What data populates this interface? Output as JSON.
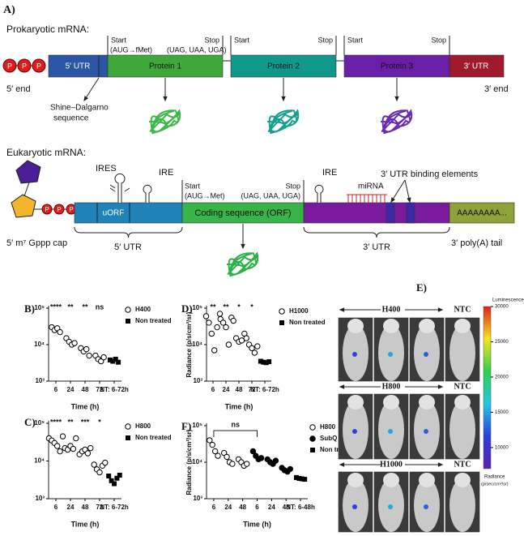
{
  "panel_a": {
    "label": "A)",
    "prokaryotic": {
      "title": "Prokaryotic mRNA:",
      "phosphates": [
        "P",
        "P",
        "P"
      ],
      "utr5": "5′ UTR",
      "proteins": [
        "Protein 1",
        "Protein 2",
        "Protein 3"
      ],
      "utr3": "3′ UTR",
      "end5": "5′ end",
      "end3": "3′ end",
      "codons": [
        "Start",
        "Stop",
        "Start",
        "Stop",
        "Start",
        "Stop"
      ],
      "start_detail": "(AUG→fMet)",
      "stop_detail": "(UAG, UAA, UGA)",
      "shine_dalgarno": [
        "Shine–Dalgarno",
        "sequence"
      ]
    },
    "eukaryotic": {
      "title": "Eukaryotic mRNA:",
      "phosphates": [
        "P",
        "P",
        "P"
      ],
      "ires": "IRES",
      "ire": [
        "IRE",
        "IRE"
      ],
      "start": "Start",
      "start_detail": "(AUG→Met)",
      "stop": "Stop",
      "stop_detail": "(UAG, UAA, UGA)",
      "mirna": "miRNA",
      "binding_elements": "3′ UTR binding elements",
      "uorf": "uORF",
      "orf": "Coding sequence (ORF)",
      "polya": "AAAAAAAA...",
      "cap": "5′ m⁷ Gppp cap",
      "utr5": "5′ UTR",
      "utr3": "3′ UTR",
      "tail": "3′ poly(A) tail"
    }
  },
  "chart_data": [
    {
      "type": "scatter",
      "label": "B)",
      "xlabel": "Time (h)",
      "categories": [
        "6",
        "24",
        "48",
        "72",
        "NT: 6-72h"
      ],
      "log_scale": true,
      "ylim": [
        1000,
        100000
      ],
      "yticks": [
        {
          "value": 1000,
          "label": "10³"
        },
        {
          "value": 10000,
          "label": "10⁴"
        },
        {
          "value": 100000,
          "label": "10⁵"
        }
      ],
      "annotations": [
        "****",
        "**",
        "**",
        "ns",
        null
      ],
      "series": [
        {
          "name": "H400",
          "marker": "circle-open",
          "color": "#000",
          "values": [
            [
              30000,
              25000,
              28000,
              22000
            ],
            [
              15000,
              12000,
              10000,
              11000
            ],
            [
              8000,
              6500,
              7500,
              5000
            ],
            [
              5000,
              4000,
              3500,
              4500
            ],
            null
          ]
        },
        {
          "name": "Non treated",
          "marker": "square",
          "color": "#000",
          "values": [
            null,
            null,
            null,
            null,
            [
              3800,
              3500,
              4000,
              3300
            ]
          ]
        }
      ]
    },
    {
      "type": "scatter",
      "label": "C)",
      "xlabel": "Time (h)",
      "categories": [
        "6",
        "24",
        "48",
        "72",
        "NT: 6-72h"
      ],
      "log_scale": true,
      "ylim": [
        1000,
        100000
      ],
      "yticks": [
        {
          "value": 1000,
          "label": "10³"
        },
        {
          "value": 10000,
          "label": "10⁴"
        },
        {
          "value": 100000,
          "label": "10⁵"
        }
      ],
      "annotations": [
        "****",
        "**",
        "***",
        "*",
        null
      ],
      "series": [
        {
          "name": "H800",
          "marker": "circle-open",
          "color": "#000",
          "values": [
            [
              40000,
              35000,
              30000,
              25000,
              18000,
              45000
            ],
            [
              22000,
              20000,
              25000,
              21000,
              40000
            ],
            [
              15000,
              18000,
              20000,
              16000,
              22000
            ],
            [
              8000,
              6000,
              5000,
              7500,
              9000
            ],
            null
          ]
        },
        {
          "name": "Non treated",
          "marker": "square",
          "color": "#000",
          "values": [
            null,
            null,
            null,
            null,
            [
              4000,
              3000,
              2500,
              3500,
              4200
            ]
          ]
        }
      ]
    },
    {
      "type": "scatter",
      "label": "D)",
      "xlabel": "Time (h)",
      "ylabel": "Radiance (p/s/cm²/sr)",
      "categories": [
        "6",
        "24",
        "48",
        "72",
        "NT: 6-72h"
      ],
      "log_scale": true,
      "ylim": [
        1000,
        100000
      ],
      "yticks": [
        {
          "value": 1000,
          "label": "10³"
        },
        {
          "value": 10000,
          "label": "10⁴"
        },
        {
          "value": 100000,
          "label": "10⁵"
        }
      ],
      "annotations": [
        "**",
        "**",
        "*",
        "*",
        null
      ],
      "series": [
        {
          "name": "H1000",
          "marker": "circle-open",
          "color": "#000",
          "values": [
            [
              60000,
              40000,
              20000,
              7000,
              30000,
              70000
            ],
            [
              50000,
              40000,
              30000,
              10000,
              55000
            ],
            [
              45000,
              15000,
              12000,
              13000,
              20000
            ],
            [
              15000,
              10000,
              8000,
              6000,
              9000
            ],
            null
          ]
        },
        {
          "name": "Non treated",
          "marker": "square",
          "color": "#000",
          "values": [
            null,
            null,
            null,
            null,
            [
              3500,
              3300,
              3200,
              3400
            ]
          ]
        }
      ]
    },
    {
      "type": "scatter",
      "label": "F)",
      "xlabel": "Time (h)",
      "ylabel": "Radiance (p/s/cm²/sr)",
      "categories": [
        "6",
        "24",
        "48",
        "6",
        "24",
        "48",
        "NT: 6-48h"
      ],
      "log_scale": true,
      "ylim": [
        1000,
        100000
      ],
      "yticks": [
        {
          "value": 1000,
          "label": "10³"
        },
        {
          "value": 10000,
          "label": "10⁴"
        },
        {
          "value": 100000,
          "label": "10⁵"
        }
      ],
      "bracket_label": "ns",
      "series": [
        {
          "name": "H800",
          "marker": "circle-open",
          "color": "#000",
          "values": [
            [
              40000,
              30000,
              20000,
              15000
            ],
            [
              18000,
              14000,
              10000,
              9000
            ],
            [
              12000,
              10000,
              8000,
              9000
            ],
            null,
            null,
            null,
            null
          ]
        },
        {
          "name": "SubQ",
          "marker": "circle",
          "color": "#000",
          "values": [
            null,
            null,
            null,
            [
              20000,
              15000,
              12000,
              13000
            ],
            [
              12000,
              10000,
              9000,
              11000
            ],
            [
              7000,
              6000,
              5500,
              6500
            ],
            null
          ]
        },
        {
          "name": "Non treated",
          "marker": "square",
          "color": "#000",
          "values": [
            null,
            null,
            null,
            null,
            null,
            null,
            [
              3800,
              3600,
              3500,
              3400
            ]
          ]
        }
      ]
    }
  ],
  "panel_e": {
    "label": "E)",
    "rows": [
      "H400",
      "H800",
      "H1000"
    ],
    "control": [
      "NTC",
      "NTC",
      "NTC"
    ],
    "colorbar": {
      "title": "Luminescence",
      "caption": [
        "Radiance",
        "(p/sec/cm²/sr)"
      ],
      "lim": [
        7000,
        30000
      ],
      "ticks": [
        30000,
        25000,
        20000,
        15000,
        10000
      ],
      "colors": [
        "#e0201b",
        "#f5e61c",
        "#2fd04a",
        "#22c8e6",
        "#2a3ee0",
        "#5a1fb0"
      ]
    }
  }
}
